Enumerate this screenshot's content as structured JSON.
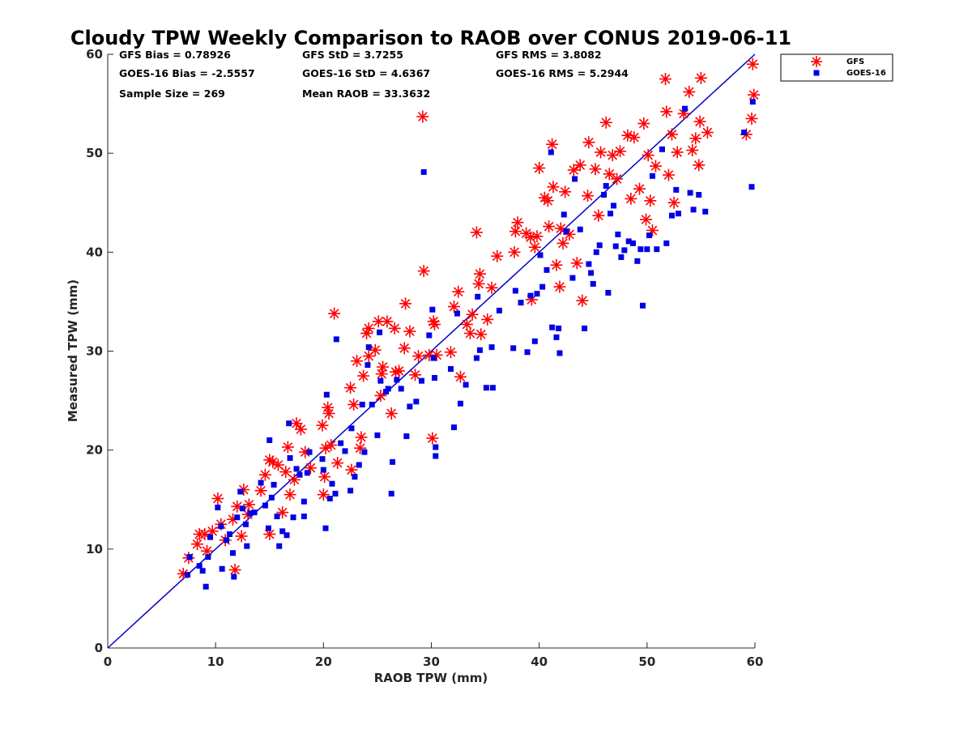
{
  "chart_data": {
    "type": "scatter",
    "title": "Cloudy TPW Weekly Comparison to RAOB over CONUS 2019-06-11",
    "xlabel": "RAOB TPW (mm)",
    "ylabel": "Measured TPW (mm)",
    "xlim": [
      0,
      60
    ],
    "ylim": [
      0,
      60
    ],
    "xticks": [
      0,
      10,
      20,
      30,
      40,
      50,
      60
    ],
    "yticks": [
      0,
      10,
      20,
      30,
      40,
      50,
      60
    ],
    "grid": false,
    "legend_position": "outside top-right",
    "reference_line": {
      "x": [
        0,
        60
      ],
      "y": [
        0,
        60
      ],
      "color": "#0000cc"
    },
    "stats": [
      "GFS Bias = 0.78926",
      "GFS StD = 3.7255",
      "GFS RMS = 3.8082",
      "GOES-16 Bias = -2.5557",
      "GOES-16 StD = 4.6367",
      "GOES-16 RMS = 5.2944",
      "Sample Size = 269",
      "Mean RAOB = 33.3632"
    ],
    "series": [
      {
        "name": "GFS",
        "marker": "asterisk",
        "color": "#ff0000",
        "points": [
          [
            7,
            7.5
          ],
          [
            7.5,
            9.1
          ],
          [
            8.3,
            10.5
          ],
          [
            8.5,
            11.5
          ],
          [
            9,
            11.5
          ],
          [
            9.2,
            9.8
          ],
          [
            9.7,
            11.8
          ],
          [
            10.2,
            15.1
          ],
          [
            10.5,
            12.5
          ],
          [
            10.9,
            10.9
          ],
          [
            11.6,
            13
          ],
          [
            11.8,
            7.9
          ],
          [
            12,
            14.3
          ],
          [
            12.4,
            11.3
          ],
          [
            12.6,
            16
          ],
          [
            13,
            13.5
          ],
          [
            13.1,
            14.5
          ],
          [
            14.2,
            15.9
          ],
          [
            14.6,
            17.5
          ],
          [
            15,
            11.5
          ],
          [
            15,
            19
          ],
          [
            15.3,
            18.8
          ],
          [
            15.8,
            18.5
          ],
          [
            16.2,
            13.7
          ],
          [
            16.5,
            17.8
          ],
          [
            16.7,
            20.3
          ],
          [
            16.9,
            15.5
          ],
          [
            17.3,
            17
          ],
          [
            17.5,
            22.7
          ],
          [
            17.9,
            22.1
          ],
          [
            18.3,
            19.8
          ],
          [
            18.8,
            18.2
          ],
          [
            19.9,
            22.5
          ],
          [
            20,
            15.5
          ],
          [
            20.1,
            17.3
          ],
          [
            20.2,
            20.2
          ],
          [
            20.4,
            24.3
          ],
          [
            20.5,
            23.7
          ],
          [
            20.7,
            20.5
          ],
          [
            21,
            33.8
          ],
          [
            21.3,
            18.7
          ],
          [
            22.5,
            26.3
          ],
          [
            22.6,
            18
          ],
          [
            22.8,
            24.6
          ],
          [
            23.1,
            29
          ],
          [
            23.4,
            20.2
          ],
          [
            23.5,
            21.3
          ],
          [
            23.7,
            27.5
          ],
          [
            24,
            31.8
          ],
          [
            24.2,
            29.5
          ],
          [
            24.2,
            32.3
          ],
          [
            24.8,
            30.1
          ],
          [
            25.1,
            33
          ],
          [
            25.3,
            25.5
          ],
          [
            25.4,
            27.7
          ],
          [
            25.5,
            28.4
          ],
          [
            25.9,
            33
          ],
          [
            26.3,
            23.7
          ],
          [
            26.6,
            32.3
          ],
          [
            26.7,
            27.9
          ],
          [
            27,
            28
          ],
          [
            27.5,
            30.3
          ],
          [
            27.6,
            34.8
          ],
          [
            28,
            32
          ],
          [
            28.5,
            27.6
          ],
          [
            28.8,
            29.5
          ],
          [
            29.2,
            53.7
          ],
          [
            29.3,
            38.1
          ],
          [
            29.8,
            29.6
          ],
          [
            30.1,
            21.2
          ],
          [
            30.2,
            33
          ],
          [
            30.3,
            32.7
          ],
          [
            30.5,
            29.6
          ],
          [
            31.8,
            29.9
          ],
          [
            32.1,
            34.5
          ],
          [
            32.5,
            36
          ],
          [
            32.7,
            27.4
          ],
          [
            33.3,
            32.7
          ],
          [
            33.6,
            31.8
          ],
          [
            33.8,
            33.7
          ],
          [
            34.2,
            42
          ],
          [
            34.4,
            36.8
          ],
          [
            34.5,
            37.8
          ],
          [
            34.6,
            31.7
          ],
          [
            35.2,
            33.2
          ],
          [
            35.6,
            36.4
          ],
          [
            36.1,
            39.6
          ],
          [
            37.7,
            40
          ],
          [
            37.8,
            42.1
          ],
          [
            38,
            43
          ],
          [
            38.8,
            41.9
          ],
          [
            39.2,
            41.5
          ],
          [
            39.3,
            35.2
          ],
          [
            39.6,
            40.5
          ],
          [
            39.8,
            41.6
          ],
          [
            40,
            48.5
          ],
          [
            40.5,
            45.5
          ],
          [
            40.8,
            45.2
          ],
          [
            40.9,
            42.6
          ],
          [
            41.2,
            50.9
          ],
          [
            41.3,
            46.6
          ],
          [
            41.6,
            38.7
          ],
          [
            41.9,
            36.5
          ],
          [
            42,
            42.4
          ],
          [
            42.2,
            40.9
          ],
          [
            42.4,
            46.1
          ],
          [
            42.8,
            41.8
          ],
          [
            43.2,
            48.3
          ],
          [
            43.5,
            38.9
          ],
          [
            43.8,
            48.8
          ],
          [
            44,
            35.1
          ],
          [
            44.5,
            45.7
          ],
          [
            44.6,
            51.1
          ],
          [
            45.2,
            48.4
          ],
          [
            45.5,
            43.7
          ],
          [
            45.7,
            50.1
          ],
          [
            46.2,
            53.1
          ],
          [
            46.5,
            47.9
          ],
          [
            46.8,
            49.8
          ],
          [
            47.2,
            47.4
          ],
          [
            47.5,
            50.2
          ],
          [
            48.2,
            51.8
          ],
          [
            48.5,
            45.4
          ],
          [
            48.8,
            51.6
          ],
          [
            49.3,
            46.4
          ],
          [
            49.7,
            53
          ],
          [
            49.9,
            43.3
          ],
          [
            50.1,
            49.8
          ],
          [
            50.3,
            45.2
          ],
          [
            50.5,
            42.2
          ],
          [
            50.8,
            48.7
          ],
          [
            51.7,
            57.5
          ],
          [
            51.8,
            54.2
          ],
          [
            52,
            47.8
          ],
          [
            52.3,
            51.9
          ],
          [
            52.5,
            45
          ],
          [
            52.8,
            50.1
          ],
          [
            53.4,
            54
          ],
          [
            53.9,
            56.2
          ],
          [
            54.2,
            50.3
          ],
          [
            54.5,
            51.5
          ],
          [
            54.8,
            48.8
          ],
          [
            54.9,
            53.2
          ],
          [
            55,
            57.6
          ],
          [
            55.6,
            52.1
          ],
          [
            59.2,
            51.9
          ],
          [
            59.7,
            53.5
          ],
          [
            59.8,
            59
          ],
          [
            59.9,
            55.9
          ]
        ]
      },
      {
        "name": "GOES-16",
        "marker": "square",
        "color": "#0000e6",
        "points": [
          [
            7.4,
            7.4
          ],
          [
            7.6,
            9.2
          ],
          [
            8.5,
            8.3
          ],
          [
            8.8,
            7.8
          ],
          [
            9.1,
            6.2
          ],
          [
            9.3,
            9.2
          ],
          [
            9.5,
            11.2
          ],
          [
            10.2,
            14.2
          ],
          [
            10.5,
            12.3
          ],
          [
            10.6,
            8
          ],
          [
            11,
            10.9
          ],
          [
            11.3,
            11.5
          ],
          [
            11.6,
            9.6
          ],
          [
            11.7,
            7.2
          ],
          [
            12,
            13.2
          ],
          [
            12.3,
            15.8
          ],
          [
            12.5,
            14.1
          ],
          [
            12.8,
            12.5
          ],
          [
            12.9,
            10.3
          ],
          [
            13.2,
            13.6
          ],
          [
            13.6,
            13.7
          ],
          [
            14.2,
            16.7
          ],
          [
            14.6,
            14.4
          ],
          [
            14.9,
            12.1
          ],
          [
            15,
            21
          ],
          [
            15.2,
            15.2
          ],
          [
            15.4,
            16.5
          ],
          [
            15.7,
            13.3
          ],
          [
            15.9,
            10.3
          ],
          [
            16.2,
            11.8
          ],
          [
            16.6,
            11.4
          ],
          [
            16.8,
            22.7
          ],
          [
            16.9,
            19.2
          ],
          [
            17.2,
            13.2
          ],
          [
            17.5,
            18.1
          ],
          [
            17.8,
            17.5
          ],
          [
            18.2,
            14.8
          ],
          [
            18.2,
            13.3
          ],
          [
            18.5,
            17.7
          ],
          [
            18.7,
            19.8
          ],
          [
            19.9,
            19.1
          ],
          [
            20,
            18
          ],
          [
            20.2,
            12.1
          ],
          [
            20.3,
            25.6
          ],
          [
            20.6,
            15.1
          ],
          [
            20.8,
            16.6
          ],
          [
            21.1,
            15.6
          ],
          [
            21.2,
            31.2
          ],
          [
            21.6,
            20.7
          ],
          [
            22,
            19.9
          ],
          [
            22.5,
            15.9
          ],
          [
            22.6,
            22.2
          ],
          [
            22.9,
            17.3
          ],
          [
            23.3,
            18.5
          ],
          [
            23.6,
            24.6
          ],
          [
            23.8,
            19.8
          ],
          [
            24.1,
            28.6
          ],
          [
            24.2,
            30.4
          ],
          [
            24.5,
            24.6
          ],
          [
            25,
            21.5
          ],
          [
            25.2,
            31.9
          ],
          [
            25.3,
            27
          ],
          [
            25.8,
            25.9
          ],
          [
            26,
            26.2
          ],
          [
            26.3,
            15.6
          ],
          [
            26.4,
            18.8
          ],
          [
            26.8,
            27.1
          ],
          [
            27.2,
            26.2
          ],
          [
            27.7,
            21.4
          ],
          [
            28,
            24.4
          ],
          [
            28.6,
            24.9
          ],
          [
            29.1,
            27
          ],
          [
            29.3,
            48.1
          ],
          [
            29.8,
            31.6
          ],
          [
            30.1,
            34.2
          ],
          [
            30.2,
            29.3
          ],
          [
            30.3,
            27.3
          ],
          [
            30.4,
            19.4
          ],
          [
            30.4,
            20.3
          ],
          [
            31.8,
            28.2
          ],
          [
            32.1,
            22.3
          ],
          [
            32.4,
            33.8
          ],
          [
            32.7,
            24.7
          ],
          [
            33.2,
            26.6
          ],
          [
            34.2,
            29.3
          ],
          [
            34.3,
            35.5
          ],
          [
            34.5,
            30.1
          ],
          [
            35.1,
            26.3
          ],
          [
            35.6,
            30.4
          ],
          [
            35.7,
            26.3
          ],
          [
            36.3,
            34.1
          ],
          [
            37.6,
            30.3
          ],
          [
            37.8,
            36.1
          ],
          [
            38.3,
            34.9
          ],
          [
            38.9,
            29.9
          ],
          [
            39.2,
            35.6
          ],
          [
            39.6,
            31
          ],
          [
            39.8,
            35.8
          ],
          [
            40.1,
            39.7
          ],
          [
            40.3,
            36.5
          ],
          [
            40.7,
            38.2
          ],
          [
            41.1,
            50.1
          ],
          [
            41.2,
            32.4
          ],
          [
            41.6,
            31.4
          ],
          [
            41.8,
            32.3
          ],
          [
            41.9,
            29.8
          ],
          [
            42.3,
            43.8
          ],
          [
            42.5,
            42.1
          ],
          [
            43.1,
            37.4
          ],
          [
            43.3,
            47.4
          ],
          [
            43.8,
            42.3
          ],
          [
            44.2,
            32.3
          ],
          [
            44.6,
            38.8
          ],
          [
            44.8,
            37.9
          ],
          [
            45,
            36.8
          ],
          [
            45.3,
            40
          ],
          [
            45.6,
            40.7
          ],
          [
            46,
            45.8
          ],
          [
            46.2,
            46.7
          ],
          [
            46.4,
            35.9
          ],
          [
            46.6,
            43.9
          ],
          [
            46.9,
            44.7
          ],
          [
            47.1,
            40.6
          ],
          [
            47.3,
            41.8
          ],
          [
            47.6,
            39.5
          ],
          [
            47.9,
            40.2
          ],
          [
            48.3,
            41.1
          ],
          [
            48.7,
            40.9
          ],
          [
            49.1,
            39.1
          ],
          [
            49.4,
            40.3
          ],
          [
            49.6,
            34.6
          ],
          [
            50,
            40.3
          ],
          [
            50.2,
            41.7
          ],
          [
            50.5,
            47.7
          ],
          [
            50.9,
            40.3
          ],
          [
            51.4,
            50.4
          ],
          [
            51.8,
            40.9
          ],
          [
            52.3,
            43.7
          ],
          [
            52.7,
            46.3
          ],
          [
            52.9,
            43.9
          ],
          [
            53.5,
            54.5
          ],
          [
            54,
            46
          ],
          [
            54.3,
            44.3
          ],
          [
            54.8,
            45.8
          ],
          [
            55.4,
            44.1
          ],
          [
            59,
            52.1
          ],
          [
            59.7,
            46.6
          ],
          [
            59.8,
            55.2
          ]
        ]
      }
    ]
  }
}
